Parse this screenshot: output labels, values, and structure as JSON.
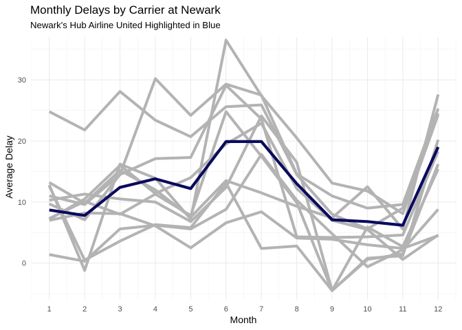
{
  "chart_data": {
    "type": "line",
    "title": "Monthly Delays by Carrier at Newark",
    "subtitle": "Newark's Hub Airline United Highlighted in Blue",
    "xlabel": "Month",
    "ylabel": "Average Delay",
    "x": [
      1,
      2,
      3,
      4,
      5,
      6,
      7,
      8,
      9,
      10,
      11,
      12
    ],
    "xlim": [
      0.5,
      12.5
    ],
    "ylim": [
      -6,
      37
    ],
    "yticks": [
      0,
      10,
      20,
      30
    ],
    "grid": true,
    "legend": "none",
    "highlight_color": "#0a0a5e",
    "background_color": "#b3b3b3",
    "highlight_series": {
      "values": [
        8.7,
        7.8,
        12.4,
        13.8,
        12.2,
        19.9,
        19.9,
        13.0,
        7.1,
        6.8,
        6.2,
        19.0
      ]
    },
    "background_series": [
      {
        "values": [
          24.8,
          21.8,
          28.1,
          23.4,
          20.7,
          25.6,
          25.9,
          14.5,
          8.0,
          5.6,
          9.0,
          24.5
        ]
      },
      {
        "values": [
          12.8,
          -1.2,
          16.2,
          13.9,
          7.2,
          36.5,
          27.4,
          20.5,
          13.1,
          11.8,
          8.1,
          24.3
        ]
      },
      {
        "values": [
          13.2,
          9.8,
          15.2,
          12.0,
          7.5,
          13.5,
          11.5,
          9.3,
          7.4,
          12.5,
          5.6,
          27.6
        ]
      },
      {
        "values": [
          11.0,
          9.6,
          14.5,
          30.2,
          24.2,
          29.3,
          27.5,
          14.6,
          11.0,
          9.0,
          9.6,
          25.3
        ]
      },
      {
        "values": [
          10.3,
          11.3,
          10.5,
          10.0,
          6.8,
          12.4,
          24.1,
          16.5,
          -4.5,
          0.8,
          1.2,
          20.2
        ]
      },
      {
        "values": [
          9.7,
          7.1,
          14.5,
          17.1,
          17.3,
          29.1,
          23.6,
          4.3,
          4.2,
          4.3,
          4.6,
          18.3
        ]
      },
      {
        "values": [
          7.3,
          10.1,
          8.0,
          11.3,
          7.8,
          24.8,
          17.5,
          9.9,
          -4.5,
          0.6,
          1.5,
          16.2
        ]
      },
      {
        "values": [
          12.6,
          0.5,
          3.6,
          6.3,
          5.8,
          13.1,
          2.4,
          2.8,
          -4.5,
          5.9,
          2.7,
          15.4
        ]
      },
      {
        "values": [
          7.0,
          8.2,
          8.1,
          6.1,
          2.5,
          6.6,
          8.4,
          4.1,
          3.9,
          3.0,
          2.4,
          4.5
        ]
      },
      {
        "values": [
          1.4,
          0.3,
          5.6,
          6.2,
          5.6,
          8.8,
          17.8,
          10.3,
          4.8,
          -0.6,
          2.2,
          8.8
        ]
      },
      {
        "values": [
          7.2,
          10.5,
          16.0,
          11.4,
          14.0,
          19.5,
          22.9,
          12.2,
          7.0,
          5.5,
          0.6,
          4.6
        ]
      }
    ]
  }
}
